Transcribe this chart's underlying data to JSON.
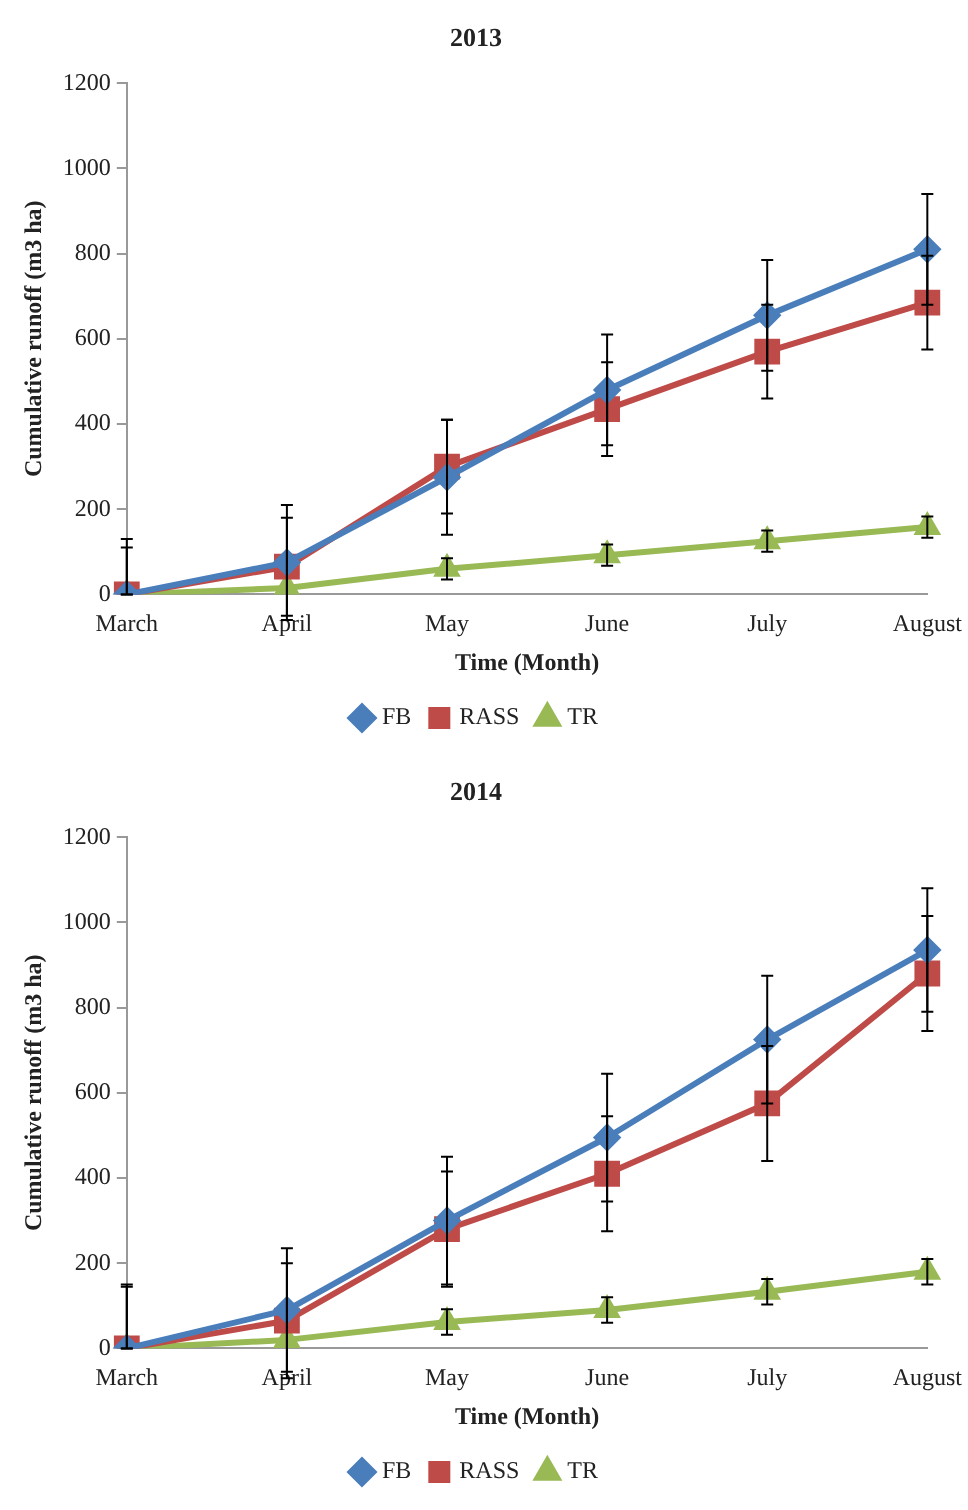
{
  "chart_data": [
    {
      "type": "line",
      "title": "2013",
      "xlabel": "Time (Month)",
      "ylabel": "Cumulative runoff (m3 ha)",
      "categories": [
        "March",
        "April",
        "May",
        "June",
        "July",
        "August"
      ],
      "ylim": [
        0,
        1200
      ],
      "yticks": [
        0,
        200,
        400,
        600,
        800,
        1000,
        1200
      ],
      "grid": false,
      "legend": "bottom",
      "series": [
        {
          "name": "FB",
          "color": "#4a7ebb",
          "marker": "diamond",
          "values": [
            0,
            75,
            275,
            480,
            655,
            810
          ],
          "errors": [
            [
              0,
              130
            ],
            135,
            135,
            130,
            130,
            130
          ]
        },
        {
          "name": "RASS",
          "color": "#be4b48",
          "marker": "square",
          "values": [
            0,
            65,
            300,
            435,
            570,
            685
          ],
          "errors": [
            [
              0,
              110
            ],
            115,
            110,
            110,
            110,
            110
          ]
        },
        {
          "name": "TR",
          "color": "#98b954",
          "marker": "triangle",
          "values": [
            0,
            15,
            60,
            92,
            125,
            158
          ],
          "errors": [
            null,
            null,
            25,
            25,
            25,
            25
          ]
        }
      ]
    },
    {
      "type": "line",
      "title": "2014",
      "xlabel": "Time (Month)",
      "ylabel": "Cumulative runoff (m3 ha)",
      "categories": [
        "March",
        "April",
        "May",
        "June",
        "July",
        "August"
      ],
      "ylim": [
        0,
        1200
      ],
      "yticks": [
        0,
        200,
        400,
        600,
        800,
        1000,
        1200
      ],
      "grid": false,
      "legend": "bottom",
      "series": [
        {
          "name": "FB",
          "color": "#4a7ebb",
          "marker": "diamond",
          "values": [
            0,
            90,
            300,
            495,
            725,
            935
          ],
          "errors": [
            [
              0,
              150
            ],
            145,
            150,
            150,
            150,
            145
          ]
        },
        {
          "name": "RASS",
          "color": "#be4b48",
          "marker": "square",
          "values": [
            0,
            65,
            280,
            410,
            575,
            880
          ],
          "errors": [
            [
              0,
              145
            ],
            135,
            135,
            135,
            135,
            135
          ]
        },
        {
          "name": "TR",
          "color": "#98b954",
          "marker": "triangle",
          "values": [
            0,
            20,
            62,
            90,
            133,
            180
          ],
          "errors": [
            null,
            null,
            30,
            30,
            30,
            30
          ]
        }
      ]
    }
  ]
}
